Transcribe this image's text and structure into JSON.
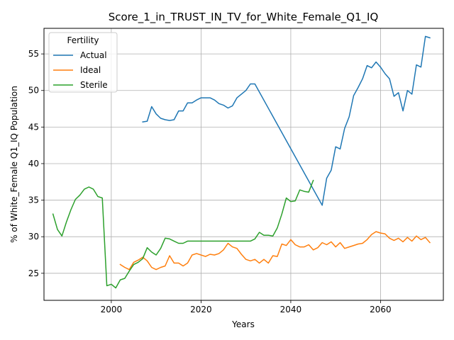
{
  "chart_data": {
    "type": "line",
    "title": "Score_1_in_TRUST_IN_TV_for_White_Female_Q1_IQ",
    "xlabel": "Years",
    "ylabel": "% of White_Female Q1_IQ Population",
    "xlim": [
      1985,
      2074
    ],
    "ylim": [
      21.3,
      58.5
    ],
    "xticks": [
      2000,
      2020,
      2040,
      2060
    ],
    "yticks": [
      25,
      30,
      35,
      40,
      45,
      50,
      55
    ],
    "grid": true,
    "legend": {
      "title": "Fertility",
      "position": "top-left"
    },
    "series": [
      {
        "name": "Actual",
        "color": "#1f77b4",
        "points": [
          [
            2007,
            45.7
          ],
          [
            2008,
            45.8
          ],
          [
            2009,
            47.8
          ],
          [
            2010,
            46.8
          ],
          [
            2011,
            46.2
          ],
          [
            2012,
            46.0
          ],
          [
            2013,
            45.9
          ],
          [
            2014,
            46.0
          ],
          [
            2015,
            47.2
          ],
          [
            2016,
            47.2
          ],
          [
            2017,
            48.3
          ],
          [
            2018,
            48.3
          ],
          [
            2019,
            48.7
          ],
          [
            2020,
            49.0
          ],
          [
            2021,
            49.0
          ],
          [
            2022,
            49.0
          ],
          [
            2023,
            48.7
          ],
          [
            2024,
            48.2
          ],
          [
            2025,
            48.0
          ],
          [
            2026,
            47.6
          ],
          [
            2027,
            47.9
          ],
          [
            2028,
            49.0
          ],
          [
            2029,
            49.5
          ],
          [
            2030,
            50.0
          ],
          [
            2031,
            50.9
          ],
          [
            2032,
            50.9
          ],
          [
            2046,
            35.4
          ],
          [
            2047,
            34.3
          ],
          [
            2048,
            38.0
          ],
          [
            2049,
            39.1
          ],
          [
            2050,
            42.3
          ],
          [
            2051,
            42.0
          ],
          [
            2052,
            44.8
          ],
          [
            2053,
            46.4
          ],
          [
            2054,
            49.3
          ],
          [
            2055,
            50.4
          ],
          [
            2056,
            51.6
          ],
          [
            2057,
            53.4
          ],
          [
            2058,
            53.1
          ],
          [
            2059,
            53.9
          ],
          [
            2060,
            53.2
          ],
          [
            2061,
            52.3
          ],
          [
            2062,
            51.6
          ],
          [
            2063,
            49.2
          ],
          [
            2064,
            49.7
          ],
          [
            2065,
            47.2
          ],
          [
            2066,
            50.0
          ],
          [
            2067,
            49.5
          ],
          [
            2068,
            53.5
          ],
          [
            2069,
            53.2
          ],
          [
            2070,
            57.4
          ],
          [
            2071,
            57.2
          ]
        ]
      },
      {
        "name": "Ideal",
        "color": "#ff7f0e",
        "points": [
          [
            2002,
            26.2
          ],
          [
            2003,
            25.8
          ],
          [
            2004,
            25.5
          ],
          [
            2005,
            26.5
          ],
          [
            2006,
            26.8
          ],
          [
            2007,
            27.2
          ],
          [
            2008,
            26.7
          ],
          [
            2009,
            25.8
          ],
          [
            2010,
            25.5
          ],
          [
            2011,
            25.8
          ],
          [
            2012,
            26.0
          ],
          [
            2013,
            27.4
          ],
          [
            2014,
            26.4
          ],
          [
            2015,
            26.4
          ],
          [
            2016,
            26.0
          ],
          [
            2017,
            26.4
          ],
          [
            2018,
            27.5
          ],
          [
            2019,
            27.7
          ],
          [
            2020,
            27.5
          ],
          [
            2021,
            27.3
          ],
          [
            2022,
            27.6
          ],
          [
            2023,
            27.5
          ],
          [
            2024,
            27.7
          ],
          [
            2025,
            28.2
          ],
          [
            2026,
            29.1
          ],
          [
            2027,
            28.6
          ],
          [
            2028,
            28.4
          ],
          [
            2029,
            27.6
          ],
          [
            2030,
            26.9
          ],
          [
            2031,
            26.7
          ],
          [
            2032,
            26.9
          ],
          [
            2033,
            26.4
          ],
          [
            2034,
            26.9
          ],
          [
            2035,
            26.4
          ],
          [
            2036,
            27.4
          ],
          [
            2037,
            27.3
          ],
          [
            2038,
            29.0
          ],
          [
            2039,
            28.8
          ],
          [
            2040,
            29.6
          ],
          [
            2041,
            28.9
          ],
          [
            2042,
            28.6
          ],
          [
            2043,
            28.6
          ],
          [
            2044,
            28.9
          ],
          [
            2045,
            28.2
          ],
          [
            2046,
            28.5
          ],
          [
            2047,
            29.2
          ],
          [
            2048,
            28.9
          ],
          [
            2049,
            29.3
          ],
          [
            2050,
            28.6
          ],
          [
            2051,
            29.2
          ],
          [
            2052,
            28.4
          ],
          [
            2053,
            28.6
          ],
          [
            2054,
            28.8
          ],
          [
            2055,
            29.0
          ],
          [
            2056,
            29.1
          ],
          [
            2057,
            29.6
          ],
          [
            2058,
            30.3
          ],
          [
            2059,
            30.7
          ],
          [
            2060,
            30.5
          ],
          [
            2061,
            30.4
          ],
          [
            2062,
            29.8
          ],
          [
            2063,
            29.5
          ],
          [
            2064,
            29.8
          ],
          [
            2065,
            29.3
          ],
          [
            2066,
            29.9
          ],
          [
            2067,
            29.4
          ],
          [
            2068,
            30.1
          ],
          [
            2069,
            29.6
          ],
          [
            2070,
            29.9
          ],
          [
            2071,
            29.2
          ]
        ]
      },
      {
        "name": "Sterile",
        "color": "#2ca02c",
        "points": [
          [
            1987,
            33.1
          ],
          [
            1988,
            31.0
          ],
          [
            1989,
            30.1
          ],
          [
            1990,
            32.0
          ],
          [
            1991,
            33.7
          ],
          [
            1992,
            35.1
          ],
          [
            1993,
            35.7
          ],
          [
            1994,
            36.5
          ],
          [
            1995,
            36.8
          ],
          [
            1996,
            36.5
          ],
          [
            1997,
            35.5
          ],
          [
            1998,
            35.3
          ],
          [
            1999,
            23.3
          ],
          [
            2000,
            23.5
          ],
          [
            2001,
            23.0
          ],
          [
            2002,
            24.1
          ],
          [
            2003,
            24.3
          ],
          [
            2004,
            25.3
          ],
          [
            2005,
            26.2
          ],
          [
            2006,
            26.5
          ],
          [
            2007,
            27.0
          ],
          [
            2008,
            28.5
          ],
          [
            2009,
            27.9
          ],
          [
            2010,
            27.5
          ],
          [
            2011,
            28.4
          ],
          [
            2012,
            29.8
          ],
          [
            2013,
            29.7
          ],
          [
            2014,
            29.4
          ],
          [
            2015,
            29.1
          ],
          [
            2016,
            29.1
          ],
          [
            2017,
            29.4
          ],
          [
            2018,
            29.4
          ],
          [
            2019,
            29.4
          ],
          [
            2020,
            29.4
          ],
          [
            2025,
            29.4
          ],
          [
            2030,
            29.4
          ],
          [
            2031,
            29.4
          ],
          [
            2032,
            29.7
          ],
          [
            2033,
            30.6
          ],
          [
            2034,
            30.2
          ],
          [
            2035,
            30.2
          ],
          [
            2036,
            30.1
          ],
          [
            2037,
            31.2
          ],
          [
            2038,
            33.1
          ],
          [
            2039,
            35.3
          ],
          [
            2040,
            34.8
          ],
          [
            2041,
            34.9
          ],
          [
            2042,
            36.4
          ],
          [
            2043,
            36.2
          ],
          [
            2044,
            36.1
          ],
          [
            2045,
            37.7
          ]
        ]
      }
    ]
  }
}
